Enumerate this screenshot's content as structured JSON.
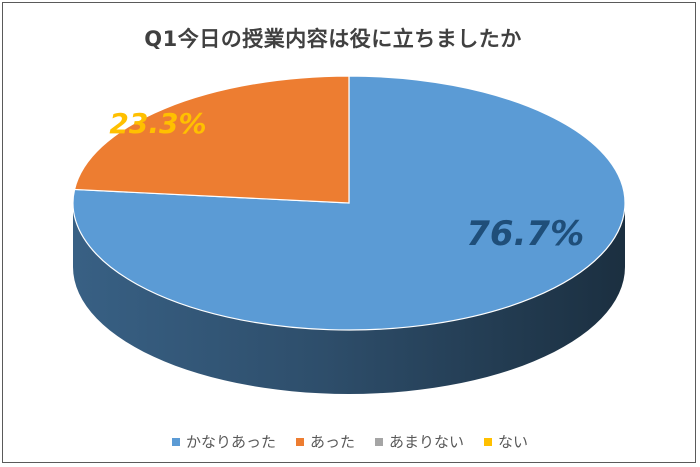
{
  "chart_data": {
    "type": "pie",
    "title": "Q1今日の授業内容は役に立ちましたか",
    "categories": [
      "かなりあった",
      "あった",
      "あまりない",
      "ない"
    ],
    "values": [
      76.7,
      23.3,
      0,
      0
    ],
    "data_labels": [
      "76.7%",
      "23.3%",
      "",
      ""
    ],
    "colors": [
      "#5b9bd5",
      "#ed7d31",
      "#a5a5a5",
      "#ffc000"
    ],
    "label_colors": [
      "#1f4e79",
      "#ffc000",
      "#a5a5a5",
      "#ffc000"
    ],
    "legend_position": "bottom"
  }
}
